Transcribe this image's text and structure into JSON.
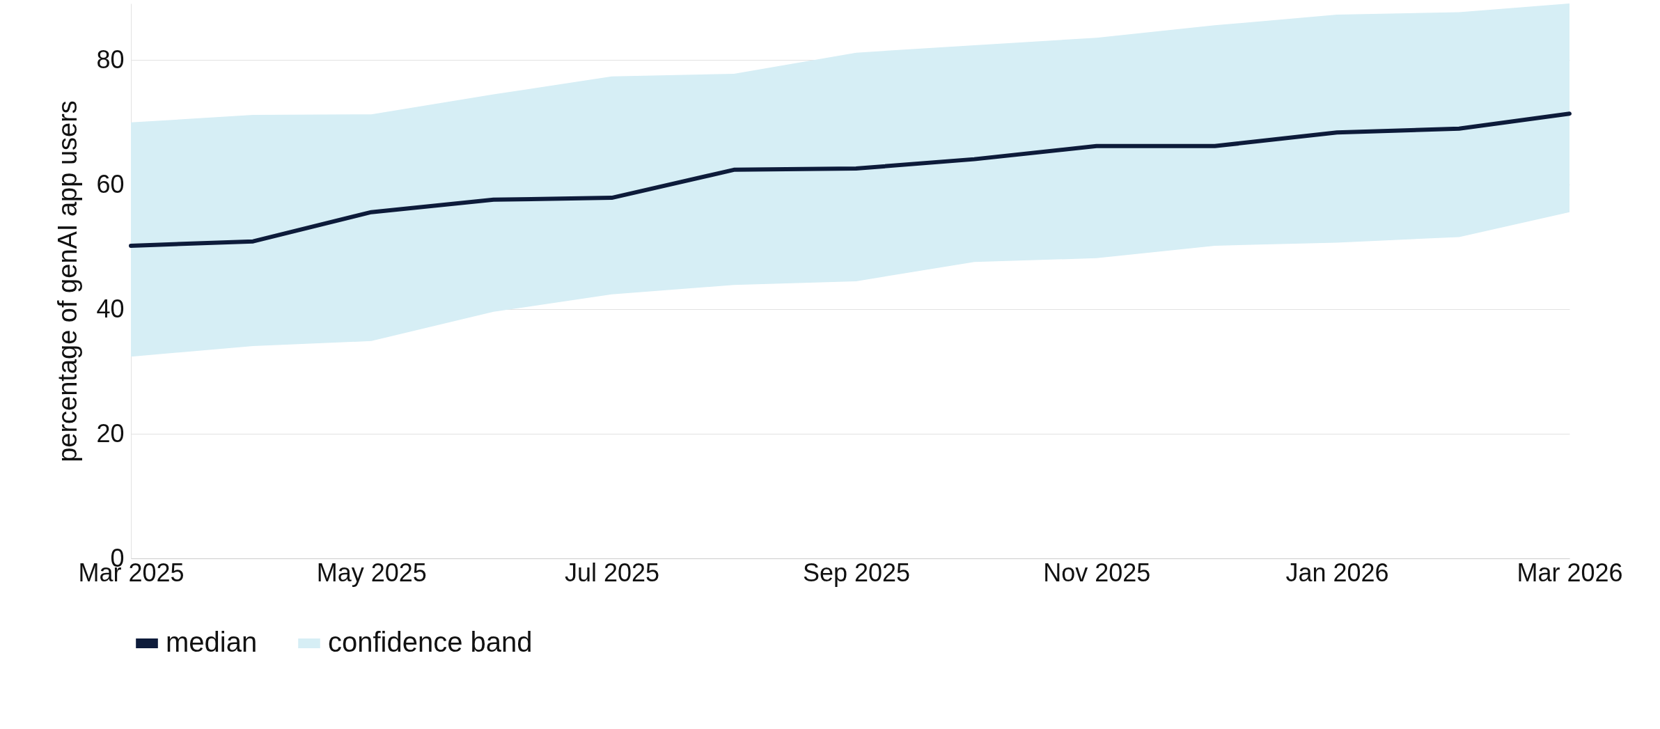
{
  "chart_data": {
    "type": "line",
    "ylabel": "percentage of genAI app users",
    "x": [
      "2025-03",
      "2025-04",
      "2025-05",
      "2025-06",
      "2025-07",
      "2025-08",
      "2025-09",
      "2025-10",
      "2025-11",
      "2025-12",
      "2026-01",
      "2026-02",
      "2026-03"
    ],
    "series": [
      {
        "name": "median",
        "color": "#0d1b3a",
        "values": [
          50.2,
          50.9,
          55.6,
          57.6,
          57.9,
          62.4,
          62.6,
          64.1,
          66.2,
          66.2,
          68.4,
          69.0,
          71.4
        ]
      },
      {
        "name": "confidence band",
        "type": "area",
        "color": "#d6eef5",
        "values": [
          null,
          null,
          null,
          null,
          null,
          null,
          null,
          null,
          null,
          null,
          null,
          null,
          null
        ],
        "lower": [
          32.4,
          34.1,
          34.9,
          39.6,
          42.4,
          43.9,
          44.5,
          47.6,
          48.2,
          50.2,
          50.7,
          51.6,
          55.6
        ],
        "upper": [
          70.0,
          71.2,
          71.3,
          74.5,
          77.4,
          77.8,
          81.2,
          82.4,
          83.6,
          85.6,
          87.3,
          87.7,
          89.1
        ]
      }
    ],
    "xlim": [
      "2025-03",
      "2026-03"
    ],
    "xticks": [
      {
        "value": "2025-03",
        "label": "Mar 2025"
      },
      {
        "value": "2025-05",
        "label": "May 2025"
      },
      {
        "value": "2025-07",
        "label": "Jul 2025"
      },
      {
        "value": "2025-09",
        "label": "Sep 2025"
      },
      {
        "value": "2025-11",
        "label": "Nov 2025"
      },
      {
        "value": "2026-01",
        "label": "Jan 2026"
      },
      {
        "value": "2026-03",
        "label": "Mar 2026"
      }
    ],
    "ylim": [
      0,
      89.1
    ],
    "yticks": [
      0,
      20,
      40,
      60,
      80
    ],
    "grid": "y",
    "legend": "bottom",
    "marker": "none",
    "line_style": "solid"
  }
}
